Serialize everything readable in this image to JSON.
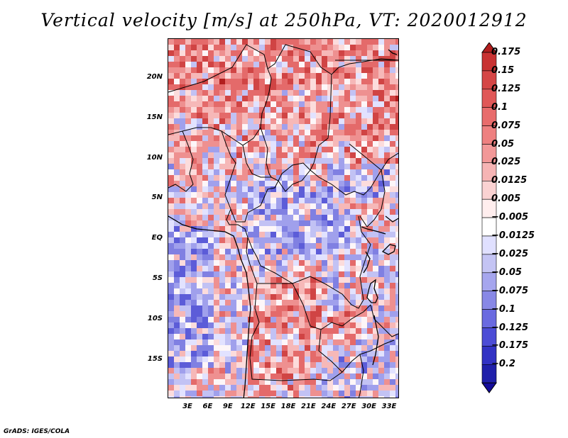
{
  "title": "Vertical velocity [m/s] at 250hPa, VT: 2020012912",
  "credit": "GrADS: IGES/COLA",
  "map": {
    "lat_labels": [
      "20N",
      "15N",
      "10N",
      "5N",
      "EQ",
      "5S",
      "10S",
      "15S"
    ],
    "lon_labels": [
      "3E",
      "6E",
      "9E",
      "12E",
      "15E",
      "18E",
      "21E",
      "24E",
      "27E",
      "30E",
      "33E"
    ]
  },
  "colorbar": {
    "labels": [
      "0.175",
      "0.15",
      "0.125",
      "0.1",
      "0.075",
      "0.05",
      "0.025",
      "0.0125",
      "0.005",
      "−0.005",
      "−0.0125",
      "−0.025",
      "−0.05",
      "−0.075",
      "−0.1",
      "−0.125",
      "−0.175",
      "−0.2"
    ],
    "colors": [
      "#b21e1e",
      "#c83232",
      "#d54646",
      "#e05858",
      "#e86c6c",
      "#ee8080",
      "#f29898",
      "#f6b4b4",
      "#fad2d2",
      "#ffeeee",
      "#ffffff",
      "#e0e0ff",
      "#c4c4f4",
      "#a6a6ee",
      "#8888e6",
      "#6a6ae0",
      "#4c4cd6",
      "#3232c4",
      "#2020aa",
      "#140c9a"
    ]
  }
}
